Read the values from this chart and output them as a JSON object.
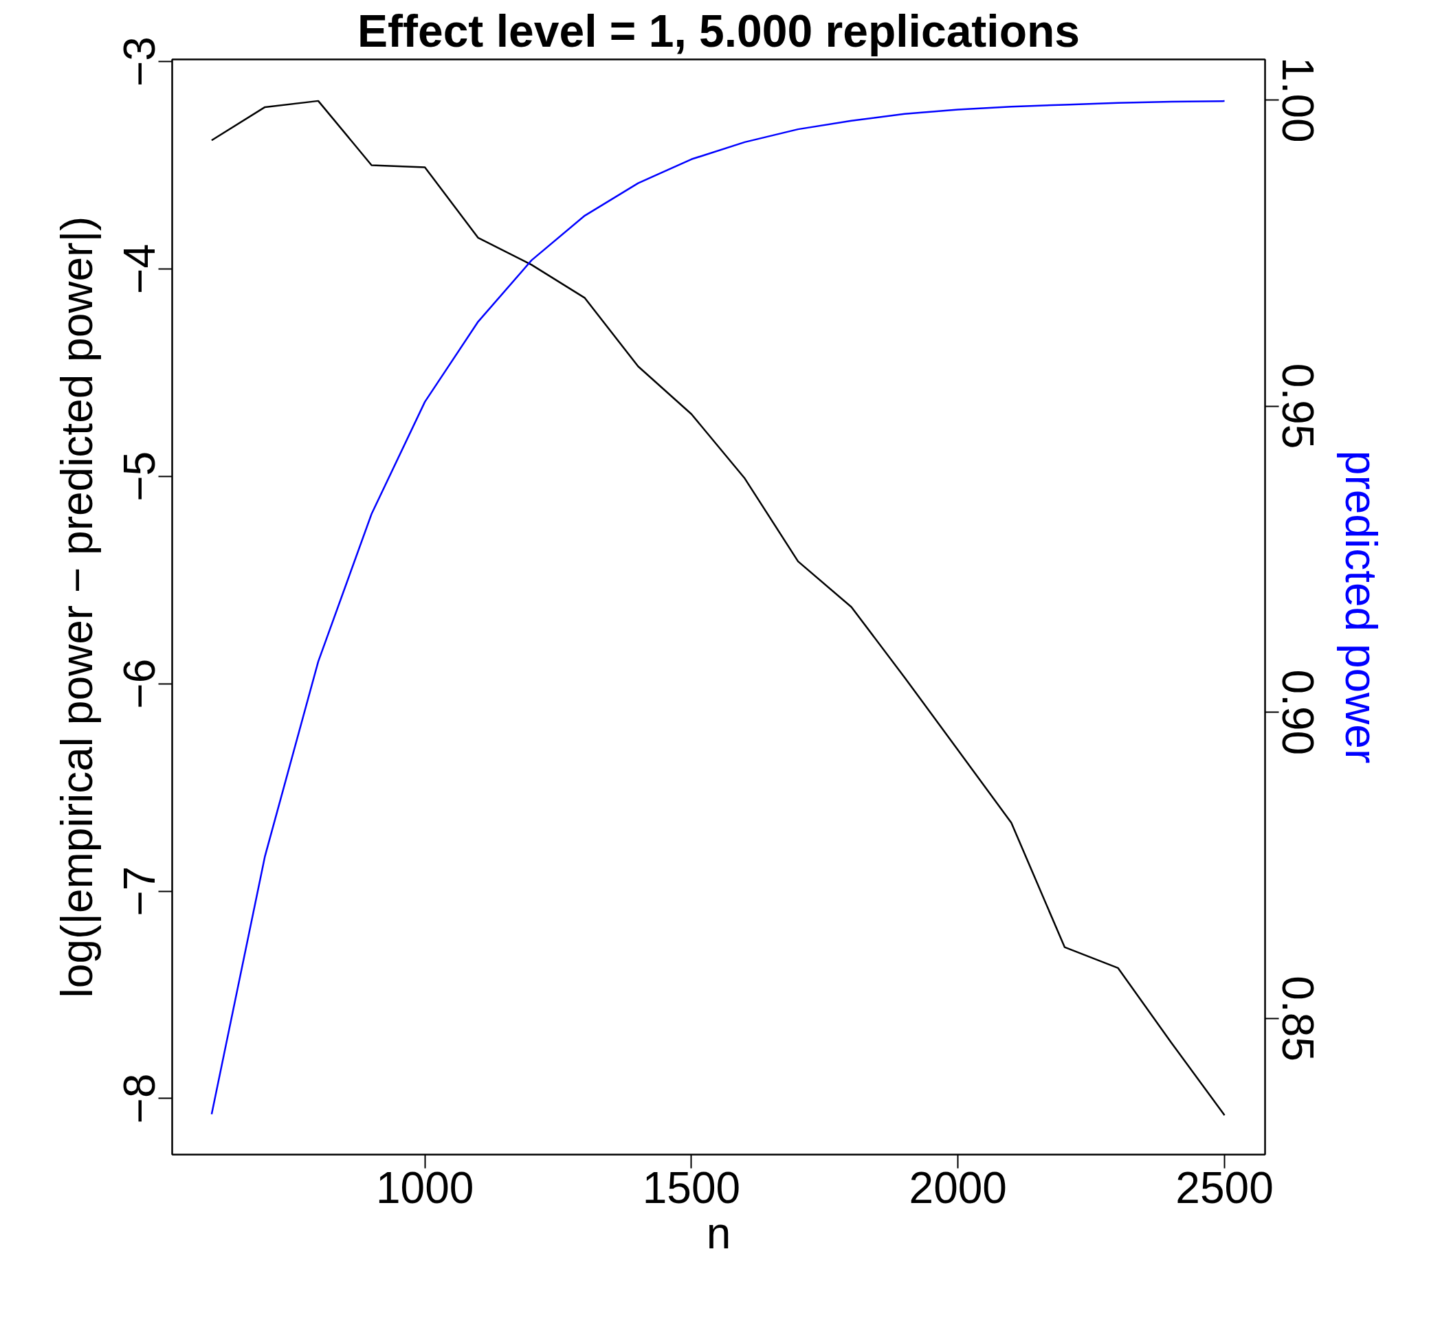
{
  "chart_data": {
    "type": "line",
    "title": "Effect level = 1, 5.000 replications",
    "xlabel": "n",
    "ylabel": "log(|empirical power − predicted power|)",
    "y2label": "predicted power",
    "x": [
      600,
      700,
      800,
      900,
      1000,
      1100,
      1200,
      1300,
      1400,
      1500,
      1600,
      1700,
      1800,
      1900,
      2000,
      2100,
      2200,
      2300,
      2400,
      2500
    ],
    "series": [
      {
        "color": "#000000",
        "values": [
          -3.38,
          -3.22,
          -3.19,
          -3.5,
          -3.51,
          -3.85,
          -3.98,
          -4.14,
          -4.47,
          -4.7,
          -5.01,
          -5.41,
          -5.63,
          -5.97,
          -6.32,
          -6.67,
          -7.27,
          -7.37,
          -7.73,
          -8.08
        ]
      },
      {
        "color": "#0000ff",
        "axis": "y2",
        "values": [
          0.8344,
          0.8765,
          0.9083,
          0.9324,
          0.9507,
          0.9638,
          0.9738,
          0.9811,
          0.9864,
          0.9903,
          0.9931,
          0.9952,
          0.9966,
          0.9977,
          0.9984,
          0.9989,
          0.9992,
          0.9995,
          0.9997,
          0.9998
        ]
      }
    ],
    "xlim": [
      526,
      2576
    ],
    "xticks": [
      1000,
      1500,
      2000,
      2500
    ],
    "ylim": [
      -8.27,
      -2.99
    ],
    "yticks": [
      -8,
      -7,
      -6,
      -5,
      -4,
      -3
    ],
    "y2lim": [
      0.8278,
      1.0066
    ],
    "y2ticks": [
      {
        "value": 0.85,
        "label": "0.85"
      },
      {
        "value": 0.9,
        "label": "0.90"
      },
      {
        "value": 0.95,
        "label": "0.95"
      },
      {
        "value": 1.0,
        "label": "1.00"
      }
    ],
    "grid": false
  }
}
